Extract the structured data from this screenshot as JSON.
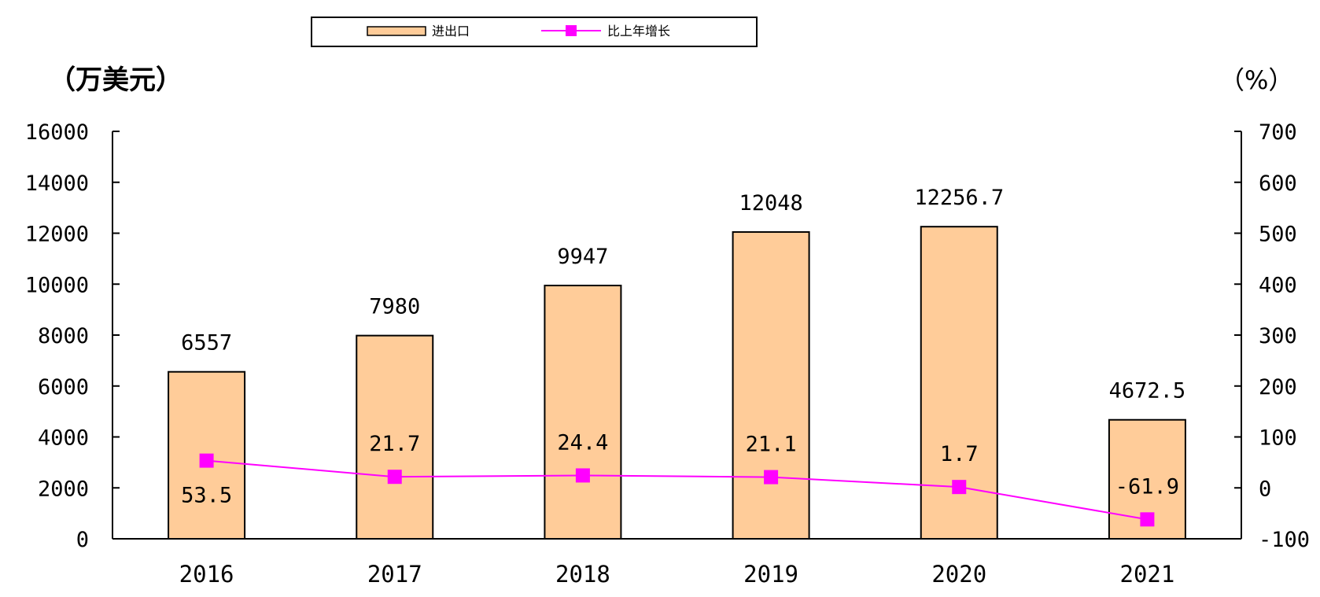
{
  "chart_data": {
    "type": "bar",
    "categories": [
      "2016",
      "2017",
      "2018",
      "2019",
      "2020",
      "2021"
    ],
    "series": [
      {
        "name": "进出口",
        "type": "bar",
        "axis": "left",
        "values": [
          6557,
          7980,
          9947,
          12048,
          12256.7,
          4672.5
        ],
        "labels": [
          "6557",
          "7980",
          "9947",
          "12048",
          "12256.7",
          "4672.5"
        ]
      },
      {
        "name": "比上年增长",
        "type": "line",
        "axis": "right",
        "values": [
          53.5,
          21.7,
          24.4,
          21.1,
          1.7,
          -61.9
        ],
        "labels": [
          "53.5",
          "21.7",
          "24.4",
          "21.1",
          "1.7",
          "-61.9"
        ]
      }
    ],
    "y_left_unit": "（万美元）",
    "y_right_unit": "（%）",
    "ylim_left": [
      0,
      16000
    ],
    "ylim_right": [
      -100,
      700
    ],
    "y_left_ticks": [
      0,
      2000,
      4000,
      6000,
      8000,
      10000,
      12000,
      14000,
      16000
    ],
    "y_right_ticks": [
      -100,
      0,
      100,
      200,
      300,
      400,
      500,
      600,
      700
    ],
    "grid": false,
    "legend_position": "top-center",
    "colors": {
      "bar_fill": "#FFCC99",
      "bar_stroke": "#000000",
      "line": "#FF00FF",
      "axis": "#000000"
    }
  }
}
